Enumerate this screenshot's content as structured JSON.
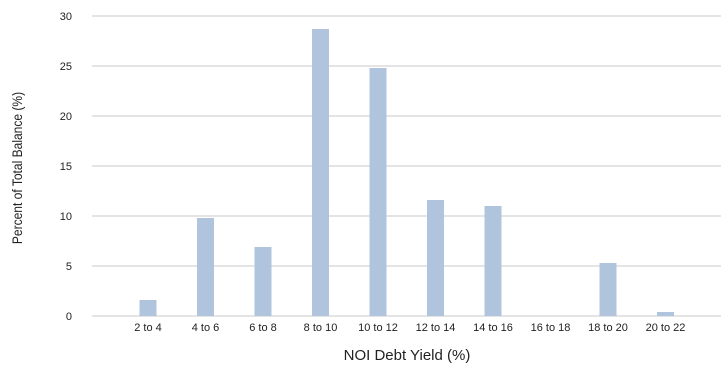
{
  "chart_data": {
    "type": "bar",
    "title": "",
    "xlabel": "NOI Debt Yield (%)",
    "ylabel": "Percent of Total Balance (%)",
    "categories": [
      "2 to 4",
      "4 to 6",
      "6 to 8",
      "8 to 10",
      "10 to 12",
      "12 to 14",
      "14 to 16",
      "16 to 18",
      "18 to 20",
      "20 to 22"
    ],
    "values": [
      1.6,
      9.8,
      6.9,
      28.7,
      24.8,
      11.6,
      11.0,
      0,
      5.3,
      0.4
    ],
    "ylim": [
      0,
      30
    ],
    "yticks": [
      0,
      5,
      10,
      15,
      20,
      25,
      30
    ],
    "grid": true,
    "bar_color": "#b0c4de",
    "grid_color": "#c8c8c8"
  }
}
